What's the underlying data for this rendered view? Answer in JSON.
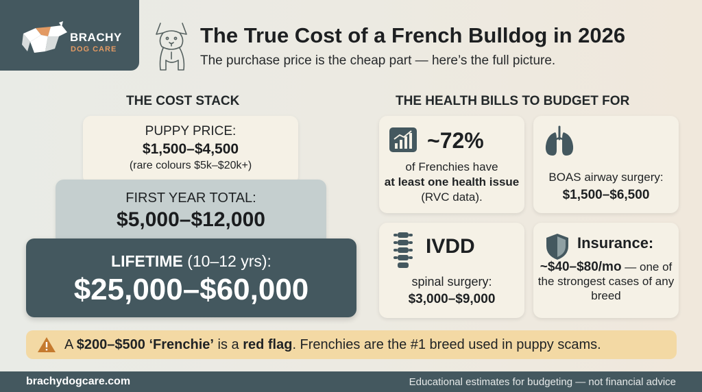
{
  "brand": {
    "name": "BRACHY",
    "sub": "DOG CARE"
  },
  "header": {
    "title": "The True Cost of a French Bulldog in 2026",
    "subtitle": "The purchase price is the cheap part — here’s the full picture."
  },
  "cost_stack": {
    "heading": "THE COST STACK",
    "puppy": {
      "label": "PUPPY PRICE:",
      "value": "$1,500–$4,500",
      "note": "(rare colours $5k–$20k+)"
    },
    "first_year": {
      "label": "FIRST YEAR TOTAL:",
      "value": "$5,000–$12,000"
    },
    "lifetime": {
      "label_bold": "LIFETIME",
      "label_rest": " (10–12 yrs):",
      "value": "$25,000–$60,000"
    }
  },
  "health": {
    "heading": "THE HEALTH BILLS TO BUDGET FOR",
    "stat_card": {
      "stat": "~72%",
      "line1": "of Frenchies have",
      "bold": "at least one health issue",
      "tail": " (RVC data).",
      "icon": "bar-chart-icon"
    },
    "boas_card": {
      "label": "BOAS airway surgery:",
      "value": "$1,500–$6,500",
      "icon": "lungs-icon"
    },
    "ivdd_card": {
      "title": "IVDD",
      "label": "spinal surgery:",
      "value": "$3,000–$9,000",
      "icon": "spine-icon"
    },
    "insurance_card": {
      "title": "Insurance:",
      "value": "~$40–$80/mo",
      "tail": " — one of the strongest cases of any breed",
      "icon": "shield-icon"
    }
  },
  "warning": {
    "pre": "A ",
    "bold1": "$200–$500 ‘Frenchie’",
    "mid": " is a ",
    "bold2": "red flag",
    "post": ". Frenchies are the #1 breed used in puppy scams."
  },
  "footer": {
    "site": "brachydogcare.com",
    "note": "Educational estimates for budgeting — not financial advice"
  },
  "colors": {
    "slate": "#44585f",
    "cream": "#f5f1e6",
    "accent": "#e39a63",
    "warning_bg": "#f3d9a4"
  }
}
